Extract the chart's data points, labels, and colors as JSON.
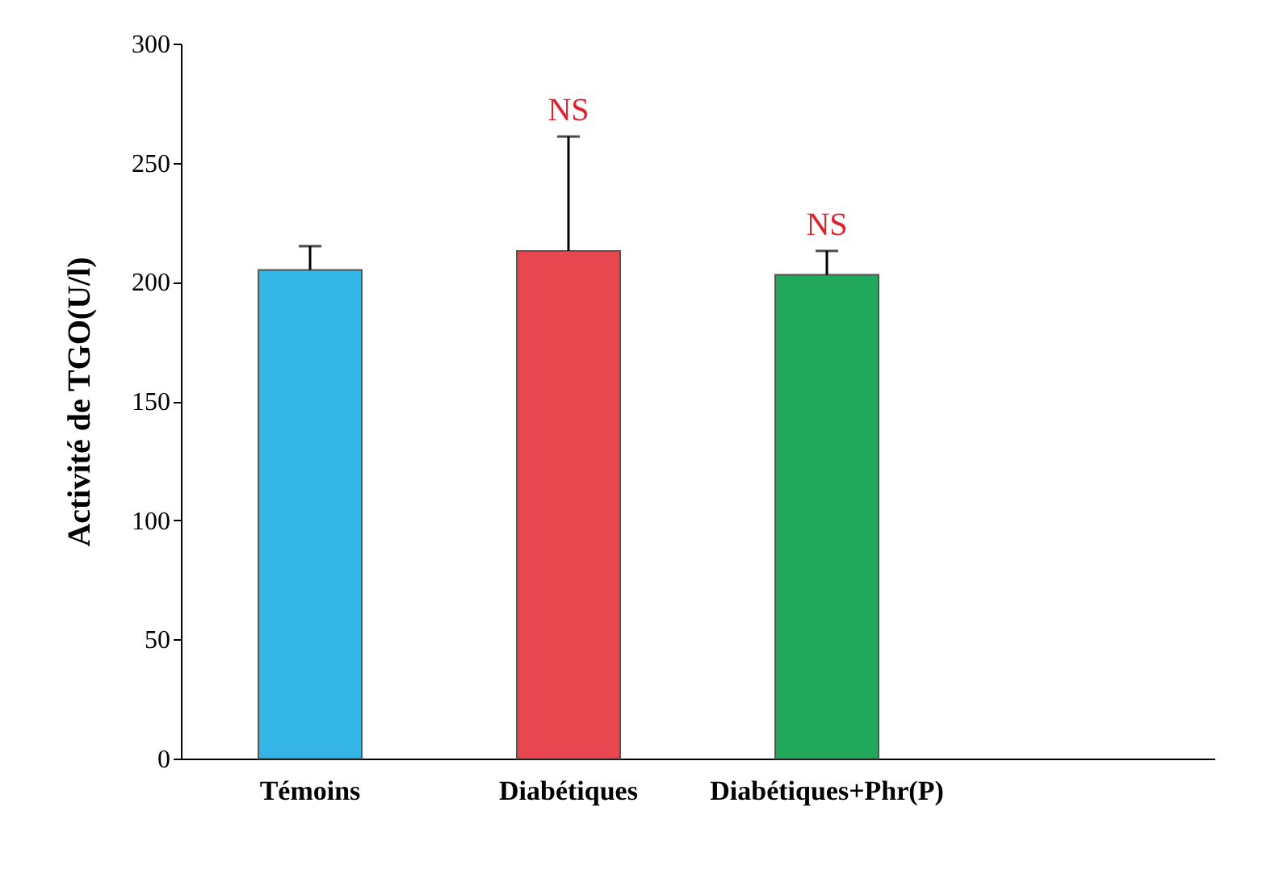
{
  "chart_data": {
    "type": "bar",
    "ylabel": "Activité de TGO(U/l)",
    "categories": [
      "Témoins",
      "Diabétiques",
      "Diabétiques+Phr(P)",
      null
    ],
    "values": [
      205,
      213,
      203,
      null
    ],
    "colors": [
      "#33b5e5",
      "#e8474f",
      "#22a85a",
      "#ffffff"
    ],
    "errors": [
      [
        205,
        215
      ],
      [
        213,
        261
      ],
      [
        203,
        213
      ],
      null
    ],
    "annotations": [
      {
        "text": "NS",
        "x": "Diabétiques",
        "y": 261
      },
      {
        "text": "NS",
        "x": "Diabétiques+Phr(P)",
        "y": 213
      }
    ],
    "ylim": [
      0,
      300
    ],
    "yticks": [
      0,
      50,
      100,
      150,
      200,
      250,
      300
    ]
  }
}
